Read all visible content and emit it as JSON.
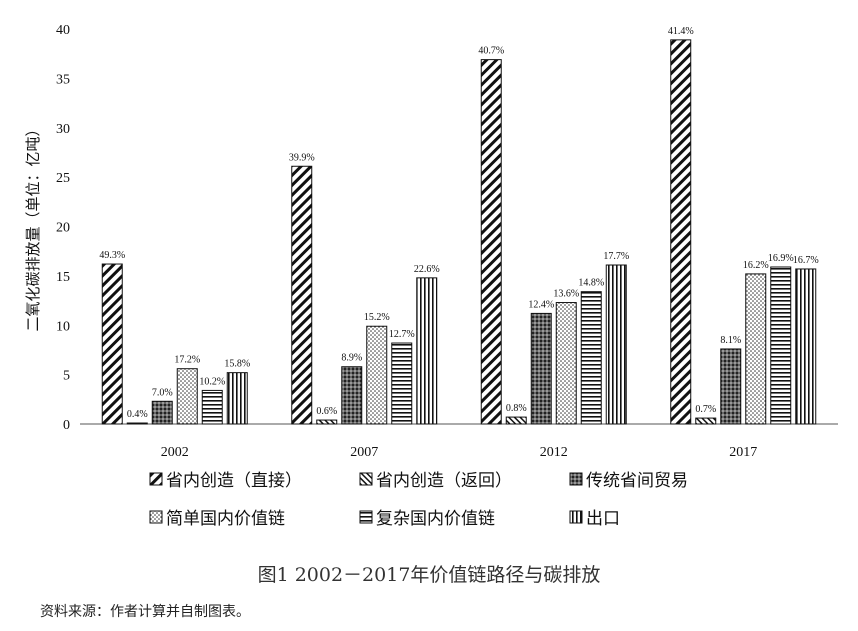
{
  "chart_data": {
    "type": "bar",
    "ylabel": "二氧化碳排放量（单位：亿吨）",
    "ylim": [
      0,
      40
    ],
    "yticks": [
      0,
      5,
      10,
      15,
      20,
      25,
      30,
      35,
      40
    ],
    "categories": [
      "2002",
      "2007",
      "2012",
      "2017"
    ],
    "series": [
      {
        "name": "省内创造（直接）",
        "pattern": "diag",
        "values": [
          16.2,
          26.1,
          36.9,
          38.9
        ],
        "labels": [
          "49.3%",
          "39.9%",
          "40.7%",
          "41.4%"
        ]
      },
      {
        "name": "省内创造（返回）",
        "pattern": "diag-thin",
        "values": [
          0.1,
          0.4,
          0.7,
          0.6
        ],
        "labels": [
          "0.4%",
          "0.6%",
          "0.8%",
          "0.7%"
        ]
      },
      {
        "name": "传统省间贸易",
        "pattern": "cross",
        "values": [
          2.3,
          5.8,
          11.2,
          7.6
        ],
        "labels": [
          "7.0%",
          "8.9%",
          "12.4%",
          "8.1%"
        ]
      },
      {
        "name": "简单国内价值链",
        "pattern": "dots",
        "values": [
          5.6,
          9.9,
          12.3,
          15.2
        ],
        "labels": [
          "17.2%",
          "15.2%",
          "13.6%",
          "16.2%"
        ]
      },
      {
        "name": "复杂国内价值链",
        "pattern": "hlines",
        "values": [
          3.4,
          8.2,
          13.4,
          15.9
        ],
        "labels": [
          "10.2%",
          "12.7%",
          "14.8%",
          "16.9%"
        ]
      },
      {
        "name": "出口",
        "pattern": "vlines",
        "values": [
          5.2,
          14.8,
          16.1,
          15.7
        ],
        "labels": [
          "15.8%",
          "22.6%",
          "17.7%",
          "16.7%"
        ]
      }
    ]
  },
  "caption": "图1  2002－2017年价值链路径与碳排放",
  "source": "资料来源：作者计算并自制图表。"
}
